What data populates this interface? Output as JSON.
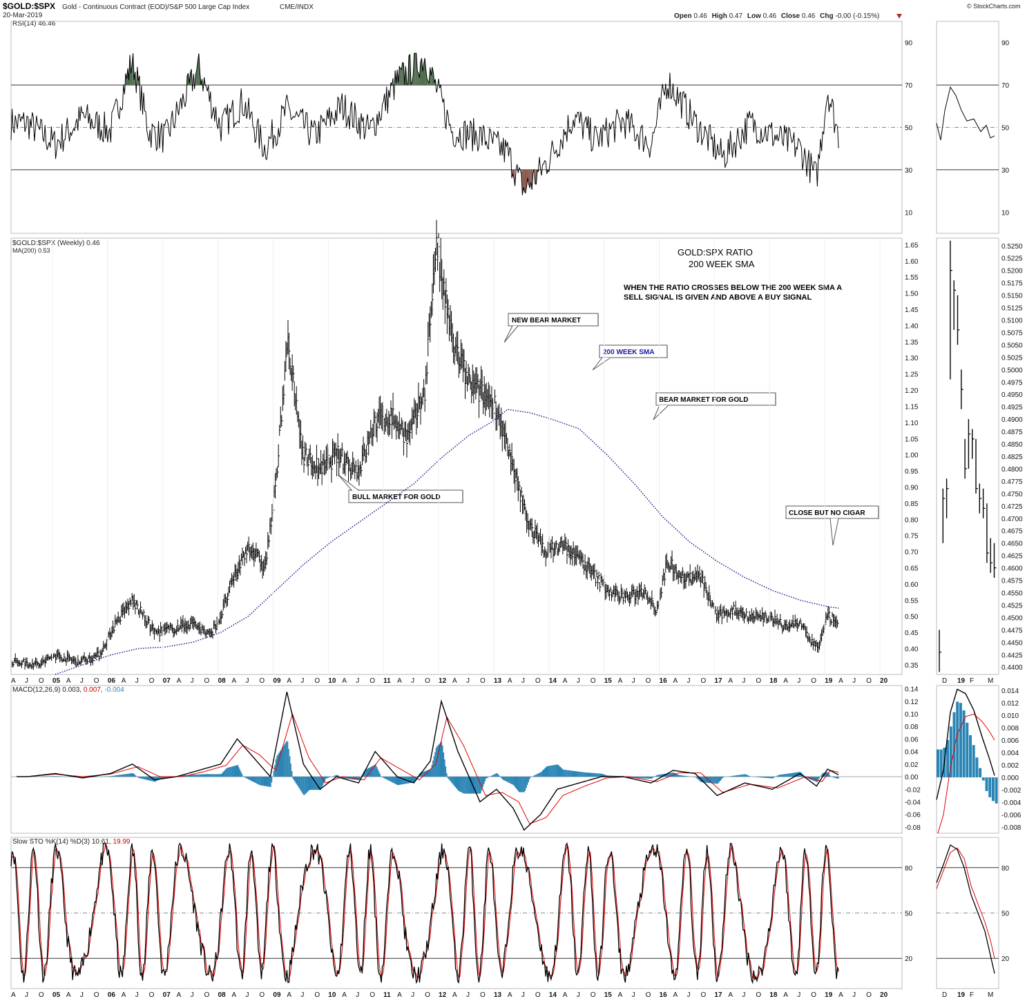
{
  "header": {
    "symbol": "$GOLD:$SPX",
    "description": "Gold - Continuous Contract (EOD)/S&P 500 Large Cap Index",
    "exchange": "CME/INDX",
    "date": "20-Mar-2019",
    "brand": "© StockCharts.com",
    "ohlc": {
      "open_label": "Open",
      "open": "0.46",
      "high_label": "High",
      "high": "0.47",
      "low_label": "Low",
      "low": "0.46",
      "close_label": "Close",
      "close": "0.46",
      "chg_label": "Chg",
      "chg": "-0.00 (-0.15%)"
    }
  },
  "annotations": {
    "title_line1": "GOLD:SPX RATIO",
    "title_line2": "200 WEEK SMA",
    "note_line1": "WHEN THE RATIO CROSSES BELOW THE 200 WEEK SMA A",
    "note_line2": "SELL SIGNAL IS GIVEN AND ABOVE A BUY SIGNAL",
    "callouts": [
      {
        "id": "new-bear",
        "text": "NEW BEAR MARKET"
      },
      {
        "id": "sma200",
        "text": "200 WEEK SMA"
      },
      {
        "id": "bear-gold",
        "text": "BEAR MARKET FOR GOLD"
      },
      {
        "id": "bull-gold",
        "text": "BULL MARKET FOR GOLD"
      },
      {
        "id": "no-cigar",
        "text": "CLOSE BUT NO CIGAR"
      }
    ]
  },
  "colors": {
    "price": "#000000",
    "sma": "#1a1a8c",
    "rsi_overbought_fill": "#4d6b4d",
    "rsi_oversold_fill": "#8b5a50",
    "macd_line": "#000000",
    "signal_line": "#e00000",
    "histogram": "#2a85b5",
    "grid": "#333333",
    "midline": "#888888"
  },
  "chart_data": [
    {
      "id": "rsi",
      "type": "line",
      "legend": "RSI(14) 46.46",
      "ylim": [
        0,
        100
      ],
      "yticks": [
        90,
        70,
        50,
        30,
        10
      ],
      "reference_lines": [
        70,
        50,
        30
      ],
      "series": [
        {
          "name": "RSI(14)",
          "x": [
            2004.5,
            2005.0,
            2005.5,
            2006.0,
            2006.4,
            2006.7,
            2007.0,
            2007.6,
            2008.0,
            2008.4,
            2008.8,
            2009.2,
            2009.7,
            2010.2,
            2010.7,
            2011.2,
            2011.7,
            2012.2,
            2012.7,
            2013.2,
            2013.5,
            2013.9,
            2014.4,
            2014.8,
            2015.3,
            2015.8,
            2016.1,
            2016.6,
            2017.1,
            2017.6,
            2018.1,
            2018.5,
            2018.8,
            2019.0,
            2019.2
          ],
          "values": [
            52,
            42,
            55,
            48,
            82,
            48,
            45,
            78,
            50,
            62,
            40,
            58,
            46,
            60,
            48,
            72,
            83,
            48,
            46,
            38,
            20,
            33,
            55,
            44,
            53,
            42,
            72,
            52,
            36,
            52,
            45,
            40,
            26,
            68,
            46
          ]
        }
      ]
    },
    {
      "id": "ratio",
      "type": "line",
      "legend": "$GOLD:$SPX (Weekly) 0.46",
      "legend2": "MA(200) 0.53",
      "ylim": [
        0.32,
        1.67
      ],
      "yticks": [
        1.65,
        1.6,
        1.55,
        1.5,
        1.45,
        1.4,
        1.35,
        1.3,
        1.25,
        1.2,
        1.15,
        1.1,
        1.05,
        1.0,
        0.95,
        0.9,
        0.85,
        0.8,
        0.75,
        0.7,
        0.65,
        0.6,
        0.55,
        0.5,
        0.45,
        0.4,
        0.35
      ],
      "xticks": [
        "A",
        "J",
        "O",
        "05",
        "A",
        "J",
        "O",
        "06",
        "A",
        "J",
        "O",
        "07",
        "A",
        "J",
        "O",
        "08",
        "A",
        "J",
        "O",
        "09",
        "A",
        "J",
        "O",
        "10",
        "A",
        "J",
        "O",
        "11",
        "A",
        "J",
        "O",
        "12",
        "A",
        "J",
        "O",
        "13",
        "A",
        "J",
        "O",
        "14",
        "A",
        "J",
        "O",
        "15",
        "A",
        "J",
        "O",
        "16",
        "A",
        "J",
        "O",
        "17",
        "A",
        "J",
        "O",
        "18",
        "A",
        "J",
        "O",
        "19",
        "A",
        "J",
        "O",
        "20"
      ],
      "series": [
        {
          "name": "$GOLD:$SPX",
          "x": [
            2004.3,
            2004.7,
            2005.0,
            2005.4,
            2005.8,
            2006.1,
            2006.4,
            2006.8,
            2007.1,
            2007.5,
            2007.8,
            2008.0,
            2008.2,
            2008.5,
            2008.8,
            2009.0,
            2009.2,
            2009.5,
            2009.8,
            2010.1,
            2010.5,
            2010.8,
            2011.1,
            2011.4,
            2011.7,
            2011.9,
            2012.2,
            2012.5,
            2012.8,
            2013.0,
            2013.3,
            2013.6,
            2013.9,
            2014.2,
            2014.5,
            2014.8,
            2015.1,
            2015.4,
            2015.7,
            2015.9,
            2016.1,
            2016.4,
            2016.7,
            2017.0,
            2017.3,
            2017.6,
            2017.9,
            2018.2,
            2018.5,
            2018.7,
            2018.85,
            2019.0,
            2019.1,
            2019.2
          ],
          "values": [
            0.36,
            0.35,
            0.38,
            0.36,
            0.38,
            0.48,
            0.55,
            0.45,
            0.46,
            0.48,
            0.44,
            0.5,
            0.6,
            0.72,
            0.65,
            0.9,
            1.35,
            1.0,
            0.95,
            1.0,
            0.95,
            1.1,
            1.12,
            1.05,
            1.2,
            1.65,
            1.35,
            1.22,
            1.18,
            1.15,
            0.95,
            0.78,
            0.7,
            0.72,
            0.68,
            0.62,
            0.57,
            0.56,
            0.58,
            0.52,
            0.67,
            0.62,
            0.62,
            0.5,
            0.52,
            0.5,
            0.5,
            0.47,
            0.48,
            0.42,
            0.41,
            0.5,
            0.49,
            0.46
          ]
        },
        {
          "name": "MA(200)",
          "x": [
            2005.0,
            2005.5,
            2006.0,
            2006.5,
            2007.0,
            2007.5,
            2008.0,
            2008.5,
            2009.0,
            2009.5,
            2010.0,
            2010.5,
            2011.0,
            2011.5,
            2012.0,
            2012.5,
            2012.9,
            2013.2,
            2013.6,
            2014.0,
            2014.5,
            2015.0,
            2015.5,
            2016.0,
            2016.5,
            2017.0,
            2017.5,
            2018.0,
            2018.5,
            2019.0,
            2019.2
          ],
          "values": [
            0.32,
            0.35,
            0.38,
            0.4,
            0.405,
            0.42,
            0.45,
            0.5,
            0.58,
            0.66,
            0.73,
            0.79,
            0.85,
            0.91,
            0.99,
            1.06,
            1.1,
            1.14,
            1.13,
            1.11,
            1.08,
            1.0,
            0.91,
            0.81,
            0.73,
            0.67,
            0.62,
            0.58,
            0.55,
            0.53,
            0.525
          ]
        }
      ]
    },
    {
      "id": "macd",
      "type": "line",
      "legend_prefix": "MACD(12,26,9)",
      "legend_macd": "0.003,",
      "legend_signal": "0.007,",
      "legend_hist": "-0.004",
      "ylim": [
        -0.09,
        0.145
      ],
      "yticks": [
        0.14,
        0.12,
        0.1,
        0.08,
        0.06,
        0.04,
        0.02,
        0.0,
        -0.02,
        -0.04,
        -0.06,
        -0.08
      ],
      "series": [
        {
          "name": "MACD",
          "x": [
            2004.5,
            2005.0,
            2005.5,
            2006.0,
            2006.4,
            2006.8,
            2007.2,
            2007.6,
            2008.0,
            2008.3,
            2008.6,
            2008.9,
            2009.2,
            2009.5,
            2009.8,
            2010.1,
            2010.5,
            2010.8,
            2011.2,
            2011.5,
            2011.8,
            2012.0,
            2012.3,
            2012.7,
            2013.0,
            2013.3,
            2013.5,
            2013.8,
            2014.1,
            2014.5,
            2014.9,
            2015.3,
            2015.8,
            2016.2,
            2016.6,
            2017.0,
            2017.5,
            2018.0,
            2018.5,
            2018.8,
            2019.0,
            2019.2
          ],
          "values": [
            0.0,
            0.005,
            -0.002,
            0.005,
            0.02,
            -0.005,
            0.0,
            0.01,
            0.02,
            0.06,
            0.03,
            0.0,
            0.135,
            0.02,
            -0.02,
            0.0,
            -0.01,
            0.04,
            0.0,
            -0.01,
            0.025,
            0.12,
            0.04,
            -0.04,
            -0.02,
            -0.05,
            -0.085,
            -0.06,
            -0.02,
            -0.01,
            0.0,
            0.0,
            -0.01,
            0.01,
            0.005,
            -0.03,
            -0.01,
            -0.02,
            0.005,
            -0.015,
            0.012,
            0.003
          ]
        },
        {
          "name": "Signal",
          "x": [
            2004.5,
            2005.0,
            2005.5,
            2006.0,
            2006.5,
            2006.9,
            2007.3,
            2007.7,
            2008.1,
            2008.4,
            2008.7,
            2009.0,
            2009.3,
            2009.6,
            2009.9,
            2010.2,
            2010.6,
            2010.9,
            2011.3,
            2011.6,
            2011.9,
            2012.1,
            2012.4,
            2012.8,
            2013.1,
            2013.4,
            2013.6,
            2013.9,
            2014.2,
            2014.6,
            2015.0,
            2015.4,
            2015.9,
            2016.3,
            2016.7,
            2017.1,
            2017.6,
            2018.1,
            2018.6,
            2018.9,
            2019.05,
            2019.2
          ],
          "values": [
            0.0,
            0.004,
            0.0,
            0.004,
            0.016,
            0.0,
            0.0,
            0.008,
            0.018,
            0.05,
            0.035,
            0.01,
            0.1,
            0.03,
            -0.01,
            0.0,
            -0.005,
            0.03,
            0.01,
            -0.005,
            0.02,
            0.095,
            0.05,
            -0.03,
            -0.025,
            -0.04,
            -0.075,
            -0.065,
            -0.03,
            -0.015,
            -0.002,
            0.0,
            -0.008,
            0.006,
            0.006,
            -0.025,
            -0.012,
            -0.018,
            0.0,
            -0.008,
            0.01,
            0.007
          ]
        },
        {
          "name": "Histogram",
          "x": [
            2005.0,
            2006.0,
            2006.5,
            2008.0,
            2008.5,
            2009.0,
            2009.4,
            2010.0,
            2010.8,
            2011.5,
            2012.0,
            2012.4,
            2013.0,
            2013.5,
            2014.0,
            2014.5,
            2015.5,
            2016.0,
            2017.0,
            2018.0,
            2018.7,
            2019.0,
            2019.2
          ],
          "values": [
            0.002,
            0.004,
            -0.004,
            0.004,
            0.01,
            0.02,
            -0.03,
            -0.01,
            0.012,
            -0.01,
            0.03,
            -0.02,
            -0.008,
            -0.008,
            0.01,
            0.008,
            -0.002,
            0.01,
            0.004,
            0.002,
            0.005,
            0.006,
            -0.004
          ]
        }
      ]
    },
    {
      "id": "sto",
      "type": "line",
      "legend_prefix": "Slow STO %K(14) %D(3)",
      "legend_k": "10.61,",
      "legend_d": "19.99",
      "ylim": [
        0,
        100
      ],
      "yticks": [
        80,
        50,
        20
      ],
      "reference_lines": [
        80,
        50,
        20
      ],
      "series": [
        {
          "name": "%K",
          "x": [],
          "values": []
        },
        {
          "name": "%D",
          "x": [],
          "values": []
        }
      ]
    },
    {
      "id": "inset",
      "type": "line",
      "xticks": [
        "D",
        "19",
        "F",
        "M"
      ],
      "rsi_yticks": [
        90,
        70,
        50,
        30,
        10
      ],
      "price_yticks": [
        0.525,
        0.5225,
        0.52,
        0.5175,
        0.515,
        0.5125,
        0.51,
        0.5075,
        0.505,
        0.5025,
        0.5,
        0.4975,
        0.495,
        0.4925,
        0.49,
        0.4875,
        0.485,
        0.4825,
        0.48,
        0.4775,
        0.475,
        0.4725,
        0.47,
        0.4675,
        0.465,
        0.4625,
        0.46,
        0.4575,
        0.455,
        0.4525,
        0.45,
        0.4475,
        0.445,
        0.4425,
        0.44
      ],
      "price_ylim": [
        0.4385,
        0.5265
      ],
      "price_bars": [
        {
          "x": 0,
          "h": 0.4475,
          "l": 0.439,
          "c": 0.443
        },
        {
          "x": 1,
          "h": 0.476,
          "l": 0.465,
          "c": 0.474
        },
        {
          "x": 2,
          "h": 0.478,
          "l": 0.47,
          "c": 0.476
        },
        {
          "x": 3,
          "h": 0.526,
          "l": 0.498,
          "c": 0.52
        },
        {
          "x": 4,
          "h": 0.518,
          "l": 0.508,
          "c": 0.516
        },
        {
          "x": 5,
          "h": 0.515,
          "l": 0.505,
          "c": 0.508
        },
        {
          "x": 6,
          "h": 0.5,
          "l": 0.492,
          "c": 0.496
        },
        {
          "x": 7,
          "h": 0.486,
          "l": 0.478,
          "c": 0.48
        },
        {
          "x": 8,
          "h": 0.49,
          "l": 0.48,
          "c": 0.487
        },
        {
          "x": 9,
          "h": 0.488,
          "l": 0.482,
          "c": 0.486
        },
        {
          "x": 10,
          "h": 0.486,
          "l": 0.475,
          "c": 0.476
        },
        {
          "x": 11,
          "h": 0.477,
          "l": 0.471,
          "c": 0.474
        },
        {
          "x": 12,
          "h": 0.476,
          "l": 0.47,
          "c": 0.472
        },
        {
          "x": 13,
          "h": 0.473,
          "l": 0.461,
          "c": 0.463
        },
        {
          "x": 14,
          "h": 0.466,
          "l": 0.459,
          "c": 0.461
        },
        {
          "x": 15,
          "h": 0.465,
          "l": 0.458,
          "c": 0.46
        }
      ],
      "macd_yticks": [
        0.014,
        0.012,
        0.01,
        0.008,
        0.006,
        0.004,
        0.002,
        0.0,
        -0.002,
        -0.004,
        -0.006,
        -0.008
      ],
      "macd_ylim": [
        -0.009,
        0.0148
      ],
      "sto_yticks": [
        80,
        50,
        20
      ]
    }
  ]
}
